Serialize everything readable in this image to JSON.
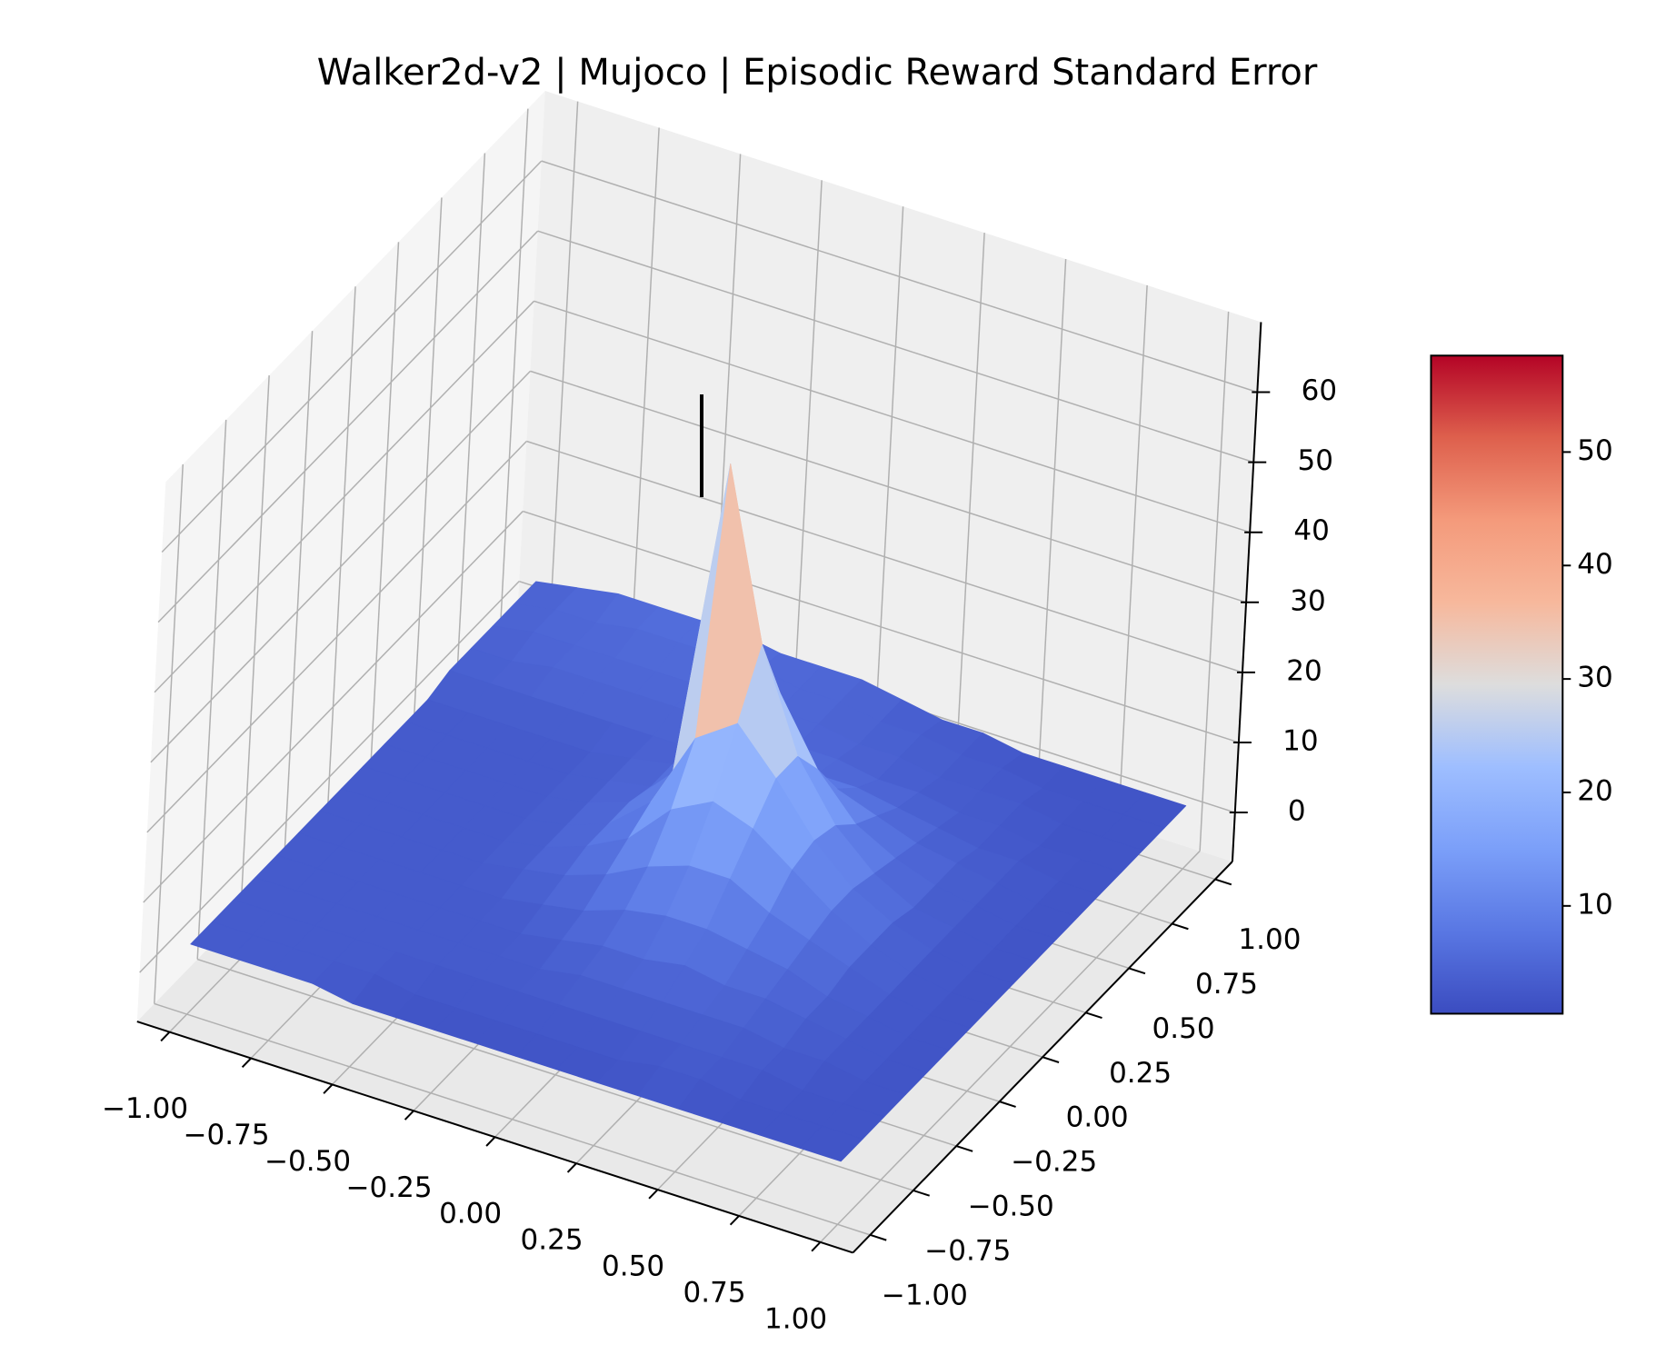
{
  "chart_data": {
    "type": "surface",
    "title": "Walker2d-v2 | Mujoco | Episodic Reward Standard Error",
    "colormap": "coolwarm",
    "x": [
      -1,
      -0.875,
      -0.75,
      -0.625,
      -0.5,
      -0.375,
      -0.25,
      -0.125,
      0,
      0.125,
      0.25,
      0.375,
      0.5,
      0.625,
      0.75,
      0.875,
      1
    ],
    "y": [
      -1,
      -0.875,
      -0.75,
      -0.625,
      -0.5,
      -0.375,
      -0.25,
      -0.125,
      0,
      0.125,
      0.25,
      0.375,
      0.5,
      0.625,
      0.75,
      0.875,
      1
    ],
    "z": [
      [
        3,
        3,
        3,
        3,
        2,
        2,
        2,
        2,
        2,
        2,
        2,
        2,
        2,
        2,
        2,
        2,
        2
      ],
      [
        3,
        3,
        3,
        3,
        3,
        2,
        2,
        2,
        2,
        2,
        2,
        3,
        3,
        2,
        2,
        2,
        2
      ],
      [
        3,
        3,
        3,
        3,
        3,
        3,
        3,
        3,
        3,
        3,
        3,
        3,
        3,
        3,
        2,
        2,
        2
      ],
      [
        3,
        3,
        3,
        3,
        3,
        3,
        3,
        3,
        4,
        4,
        4,
        4,
        4,
        3,
        3,
        2,
        2
      ],
      [
        3,
        3,
        3,
        3,
        3,
        3,
        3,
        4,
        5,
        5,
        6,
        5,
        5,
        4,
        3,
        2,
        2
      ],
      [
        3,
        3,
        3,
        3,
        3,
        3,
        4,
        5,
        7,
        8,
        8,
        7,
        6,
        4,
        3,
        2,
        2
      ],
      [
        3,
        3,
        3,
        3,
        3,
        4,
        5,
        7,
        10,
        12,
        12,
        9,
        7,
        5,
        3,
        2,
        2
      ],
      [
        3,
        3,
        3,
        3,
        3,
        4,
        6,
        9,
        15,
        18,
        16,
        12,
        8,
        5,
        3,
        2,
        2
      ],
      [
        3,
        3,
        3,
        3,
        3,
        4,
        6,
        11,
        22,
        26,
        20,
        13,
        8,
        5,
        3,
        2,
        2
      ],
      [
        3,
        3,
        3,
        3,
        3,
        4,
        6,
        12,
        58,
        34,
        20,
        12,
        7,
        4,
        3,
        2,
        2
      ],
      [
        3,
        3,
        3,
        3,
        3,
        4,
        5,
        9,
        30,
        24,
        15,
        9,
        6,
        4,
        3,
        2,
        2
      ],
      [
        3,
        3,
        3,
        3,
        3,
        4,
        5,
        7,
        12,
        11,
        9,
        7,
        5,
        4,
        3,
        2,
        2
      ],
      [
        4,
        4,
        4,
        4,
        4,
        4,
        4,
        5,
        6,
        6,
        6,
        5,
        4,
        3,
        3,
        2,
        2
      ],
      [
        4,
        4,
        5,
        5,
        5,
        5,
        5,
        5,
        5,
        5,
        4,
        4,
        3,
        3,
        2,
        2,
        2
      ],
      [
        4,
        5,
        5,
        5,
        5,
        5,
        5,
        5,
        5,
        4,
        4,
        3,
        3,
        3,
        2,
        2,
        2
      ],
      [
        4,
        5,
        5,
        6,
        6,
        6,
        6,
        5,
        5,
        4,
        4,
        3,
        3,
        2,
        2,
        2,
        2
      ],
      [
        4,
        5,
        6,
        6,
        6,
        6,
        5,
        5,
        5,
        4,
        3,
        3,
        2,
        2,
        2,
        2,
        2
      ]
    ],
    "xlim": [
      -1.1,
      1.1
    ],
    "ylim": [
      -1.1,
      1.1
    ],
    "zlim": [
      -7,
      70
    ],
    "xticks": [
      {
        "value": -1,
        "label": "−1.00"
      },
      {
        "value": -0.75,
        "label": "−0.75"
      },
      {
        "value": -0.5,
        "label": "−0.50"
      },
      {
        "value": -0.25,
        "label": "−0.25"
      },
      {
        "value": 0,
        "label": "0.00"
      },
      {
        "value": 0.25,
        "label": "0.25"
      },
      {
        "value": 0.5,
        "label": "0.50"
      },
      {
        "value": 0.75,
        "label": "0.75"
      },
      {
        "value": 1,
        "label": "1.00"
      }
    ],
    "yticks": [
      {
        "value": -1,
        "label": "−1.00"
      },
      {
        "value": -0.75,
        "label": "−0.75"
      },
      {
        "value": -0.5,
        "label": "−0.50"
      },
      {
        "value": -0.25,
        "label": "−0.25"
      },
      {
        "value": 0,
        "label": "0.00"
      },
      {
        "value": 0.25,
        "label": "0.25"
      },
      {
        "value": 0.5,
        "label": "0.50"
      },
      {
        "value": 0.75,
        "label": "0.75"
      },
      {
        "value": 1,
        "label": "1.00"
      }
    ],
    "zticks": [
      0,
      10,
      20,
      30,
      40,
      50,
      60
    ],
    "colorbar": {
      "lim": [
        0.5,
        58.5
      ],
      "ticks": [
        10,
        20,
        30,
        40,
        50
      ]
    },
    "grid": true
  }
}
